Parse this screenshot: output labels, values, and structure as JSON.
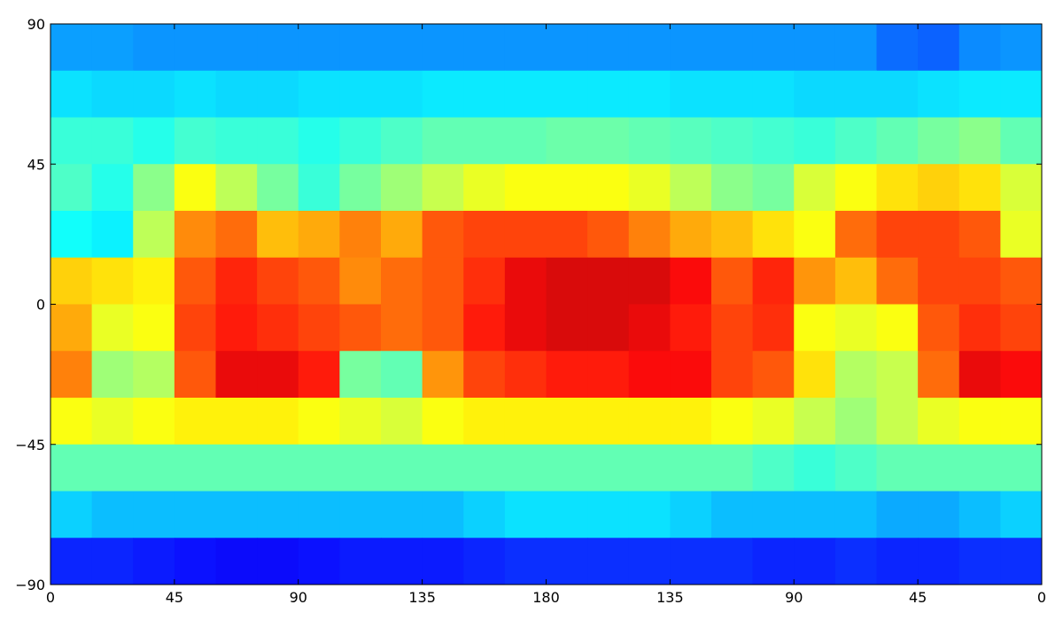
{
  "chart_data": {
    "type": "heatmap",
    "colormap": "jet",
    "xlim": [
      0,
      360
    ],
    "ylim": [
      -90,
      90
    ],
    "xticks": [
      0,
      45,
      90,
      135,
      180,
      {
        "value": 225,
        "label": "135"
      },
      {
        "value": 270,
        "label": "90"
      },
      {
        "value": 315,
        "label": "45"
      },
      {
        "value": 360,
        "label": "0"
      }
    ],
    "yticks": [
      {
        "value": -90,
        "label": "−90"
      },
      {
        "value": -45,
        "label": "−45"
      },
      0,
      45,
      90
    ],
    "z": [
      [
        0.27,
        0.27,
        0.26,
        0.26,
        0.26,
        0.26,
        0.26,
        0.26,
        0.26,
        0.26,
        0.26,
        0.26,
        0.26,
        0.26,
        0.26,
        0.26,
        0.26,
        0.26,
        0.26,
        0.26,
        0.22,
        0.21,
        0.25,
        0.26
      ],
      [
        0.34,
        0.33,
        0.33,
        0.34,
        0.33,
        0.33,
        0.34,
        0.34,
        0.34,
        0.35,
        0.35,
        0.35,
        0.35,
        0.35,
        0.35,
        0.34,
        0.34,
        0.34,
        0.33,
        0.33,
        0.33,
        0.34,
        0.35,
        0.35
      ],
      [
        0.42,
        0.42,
        0.4,
        0.43,
        0.42,
        0.42,
        0.4,
        0.42,
        0.44,
        0.46,
        0.46,
        0.46,
        0.47,
        0.47,
        0.46,
        0.45,
        0.44,
        0.43,
        0.42,
        0.44,
        0.46,
        0.48,
        0.5,
        0.46
      ],
      [
        0.44,
        0.4,
        0.5,
        0.62,
        0.55,
        0.48,
        0.42,
        0.48,
        0.52,
        0.56,
        0.6,
        0.62,
        0.62,
        0.62,
        0.6,
        0.55,
        0.5,
        0.48,
        0.58,
        0.62,
        0.66,
        0.68,
        0.66,
        0.58
      ],
      [
        0.38,
        0.36,
        0.55,
        0.75,
        0.78,
        0.7,
        0.72,
        0.76,
        0.72,
        0.8,
        0.82,
        0.82,
        0.82,
        0.8,
        0.76,
        0.72,
        0.7,
        0.66,
        0.62,
        0.78,
        0.82,
        0.82,
        0.8,
        0.6
      ],
      [
        0.68,
        0.66,
        0.64,
        0.8,
        0.85,
        0.82,
        0.8,
        0.75,
        0.78,
        0.8,
        0.84,
        0.9,
        0.92,
        0.92,
        0.92,
        0.88,
        0.8,
        0.85,
        0.74,
        0.7,
        0.78,
        0.82,
        0.82,
        0.8
      ],
      [
        0.72,
        0.6,
        0.62,
        0.82,
        0.86,
        0.84,
        0.82,
        0.8,
        0.78,
        0.8,
        0.86,
        0.9,
        0.92,
        0.92,
        0.9,
        0.86,
        0.82,
        0.84,
        0.62,
        0.6,
        0.62,
        0.8,
        0.84,
        0.82
      ],
      [
        0.76,
        0.52,
        0.54,
        0.8,
        0.9,
        0.9,
        0.86,
        0.48,
        0.46,
        0.74,
        0.82,
        0.84,
        0.86,
        0.86,
        0.88,
        0.88,
        0.82,
        0.8,
        0.66,
        0.54,
        0.56,
        0.78,
        0.9,
        0.88
      ],
      [
        0.62,
        0.6,
        0.62,
        0.64,
        0.64,
        0.64,
        0.62,
        0.6,
        0.58,
        0.62,
        0.64,
        0.64,
        0.64,
        0.64,
        0.64,
        0.64,
        0.62,
        0.6,
        0.56,
        0.52,
        0.56,
        0.6,
        0.62,
        0.62
      ],
      [
        0.46,
        0.46,
        0.46,
        0.46,
        0.46,
        0.46,
        0.46,
        0.46,
        0.46,
        0.46,
        0.46,
        0.46,
        0.46,
        0.46,
        0.46,
        0.46,
        0.46,
        0.44,
        0.42,
        0.44,
        0.46,
        0.46,
        0.46,
        0.46
      ],
      [
        0.32,
        0.3,
        0.3,
        0.3,
        0.3,
        0.3,
        0.3,
        0.3,
        0.3,
        0.3,
        0.32,
        0.34,
        0.34,
        0.34,
        0.34,
        0.32,
        0.3,
        0.3,
        0.3,
        0.3,
        0.28,
        0.28,
        0.3,
        0.32
      ],
      [
        0.15,
        0.15,
        0.14,
        0.13,
        0.12,
        0.12,
        0.13,
        0.14,
        0.14,
        0.14,
        0.15,
        0.16,
        0.16,
        0.16,
        0.16,
        0.16,
        0.16,
        0.15,
        0.15,
        0.16,
        0.15,
        0.15,
        0.16,
        0.16
      ]
    ]
  }
}
